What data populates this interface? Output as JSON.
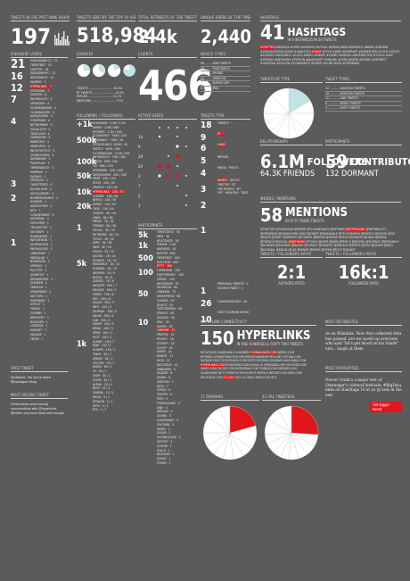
{
  "tweets": {
    "header": "TWEETS IN THE PAST NINE HOURS",
    "value": "197"
  },
  "users": {
    "header": "TWEETS SENT BY THE TOP 10 USERS",
    "value": "518,984"
  },
  "retweets": {
    "header": "TOTAL RETWEETS OF THE TWEETS",
    "value": "2.4k"
  },
  "unique": {
    "header": "UNIQUE USERS OF THE TWEETS",
    "value": "2,440"
  },
  "hashtags": {
    "header": "HASHTAGS",
    "value": "41",
    "title": "HASHTAGS",
    "sub": "IN 9 INSTANCES IN 38 TWEETS"
  },
  "followers": {
    "value": "6.1M",
    "title": "FOLLOWERS",
    "sub": "64.3K FRIENDS"
  },
  "contributors": {
    "value": "59",
    "title": "CONTRIBUTORS",
    "sub": "132 DORMANT"
  },
  "mentions": {
    "value": "58",
    "title": "MENTIONS",
    "sub": "IN FIFTY THREE TWEETS"
  },
  "hyperlinks": {
    "value": "150",
    "title": "HYPERLINKS",
    "sub": "IN ONE HUNDRED & FORTY TWO TWEETS"
  },
  "big466": "466",
  "ratio1": {
    "value": "2:1",
    "label": "AUTHORS RATIO"
  },
  "ratio2": {
    "value": "16k:1",
    "label": "FOLLOWERS RATIO"
  },
  "left_nums": [
    "21",
    "16",
    "12",
    "7",
    "4",
    "3",
    "2",
    "1"
  ],
  "follow_nums": [
    "+1k",
    "500k",
    "100k",
    "50k",
    "10k",
    "20k",
    "1",
    "5k",
    "1k"
  ],
  "mid_nums": [
    "5k",
    "1k",
    "500",
    "100",
    "50",
    "10",
    "1",
    "26",
    "10"
  ],
  "sections": {
    "frequent": "FREQUENT USERS",
    "sources": "SOURCES",
    "following": "FOLLOWING / FOLLOWERS",
    "active": "ACTIVE USERS",
    "clients": "CLIENTS",
    "tweets_type": "TWEETS TYPE",
    "device": "DEVICE TYPES",
    "relationships": "RELATIONSHIPS",
    "participants": "PARTICIPANTS",
    "hyper_conn": "HYPERLINK CONNECTIVITY",
    "domains": "17 DOMAINS",
    "tweeters": "43 URL TWEETERS",
    "wordcloud": "WORDS / MENTIONS",
    "first_tweet": "FIRST TWEET",
    "last_tweet": "MOST RECENT TWEET"
  },
  "tweet_text": "Kindbeard: fab link to share @hackagain #tag",
  "recent_tweet": "Great thanks and evening conversations with @hyperlinks @twitter and more data here enough",
  "quote1": "As an Wikidata. Now that collected data has passed, are we saved up everyone who said \"let's get blood on his hands\" and... laugh at them",
  "quote2": "Newer Grafica a major test of Steenager's cultural festivals: #BigData links on Hashtags 10 at ya @ bots in the end",
  "badge": "Get bigger tweet",
  "colors": {
    "accent": "#e0161b",
    "pale": "#bfe4e6",
    "bg": "#5b5b5b"
  }
}
